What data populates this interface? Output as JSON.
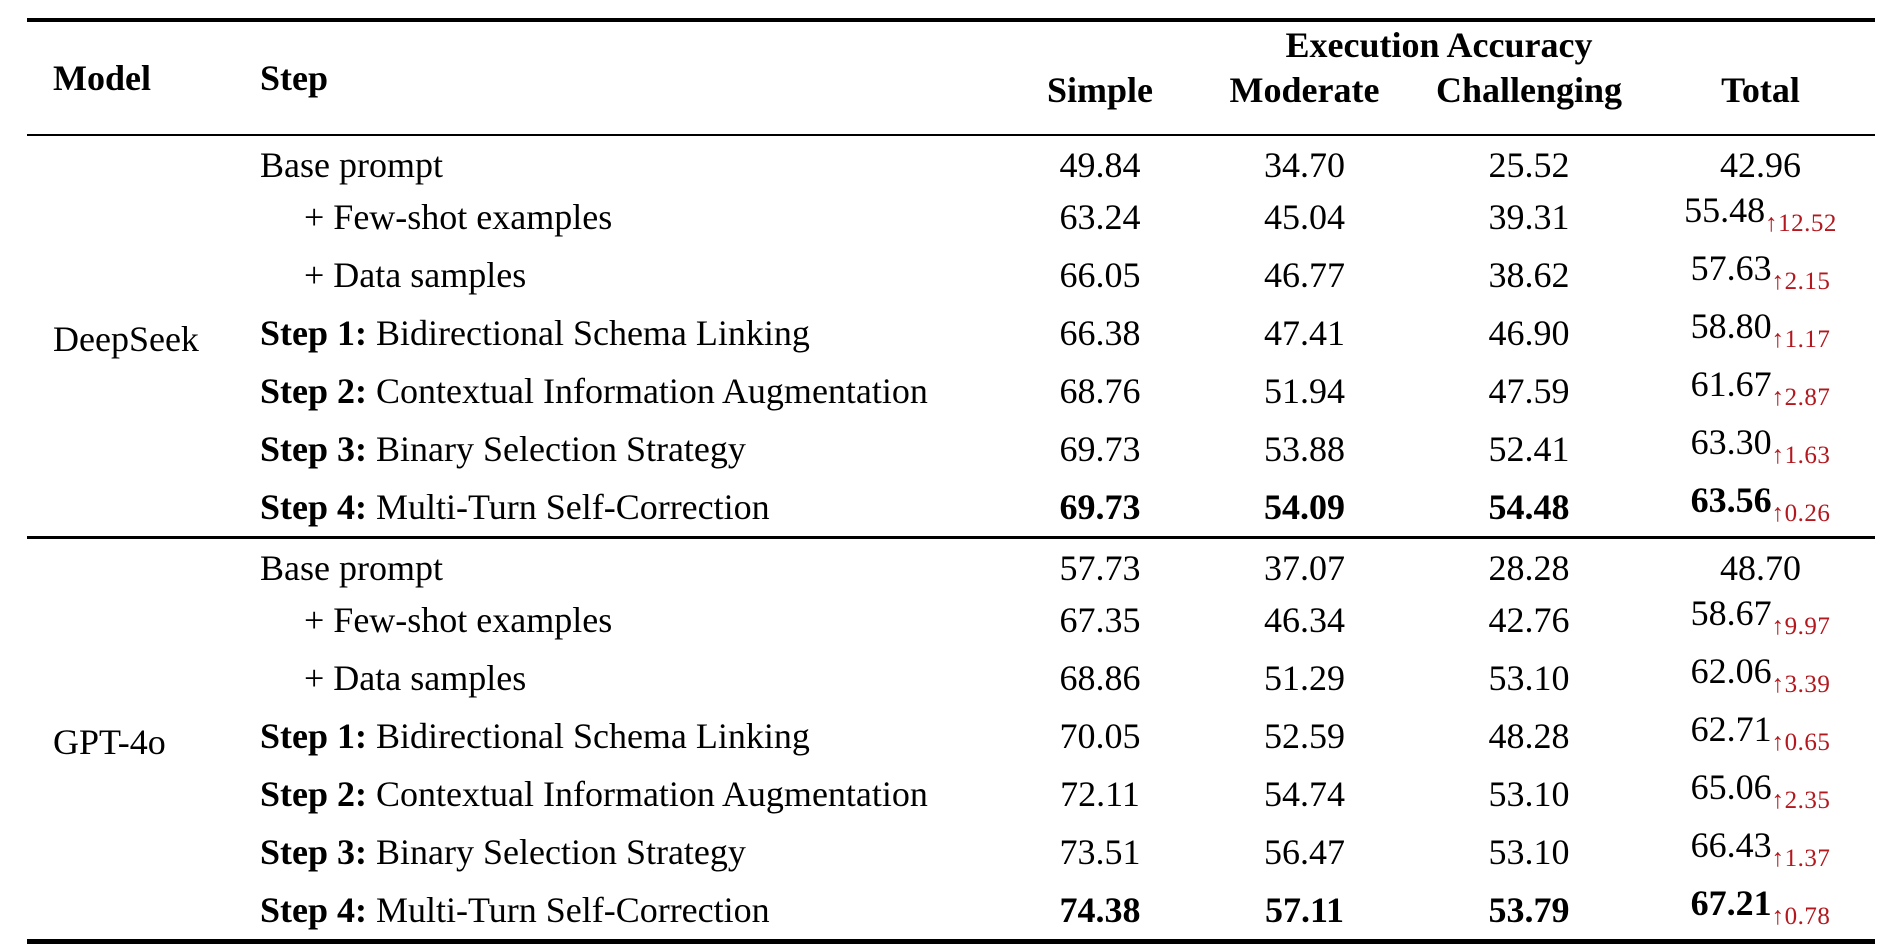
{
  "table": {
    "header": {
      "model_label": "Model",
      "step_label": "Step",
      "group_label": "Execution Accuracy",
      "sub_columns": [
        "Simple",
        "Moderate",
        "Challenging",
        "Total"
      ]
    },
    "colors": {
      "delta_red": "#b2181e",
      "text": "#000000",
      "rule": "#000000"
    },
    "sections": [
      {
        "model": "DeepSeek",
        "rows": [
          {
            "step_prefix": "",
            "step": "Base prompt",
            "indent": false,
            "bold": false,
            "simple": "49.84",
            "moderate": "34.70",
            "challenging": "25.52",
            "total": "42.96",
            "delta": ""
          },
          {
            "step_prefix": "",
            "step": "+ Few-shot examples",
            "indent": true,
            "bold": false,
            "simple": "63.24",
            "moderate": "45.04",
            "challenging": "39.31",
            "total": "55.48",
            "delta": "↑12.52"
          },
          {
            "step_prefix": "",
            "step": "+ Data samples",
            "indent": true,
            "bold": false,
            "simple": "66.05",
            "moderate": "46.77",
            "challenging": "38.62",
            "total": "57.63",
            "delta": "↑2.15"
          },
          {
            "step_prefix": "Step 1:",
            "step": " Bidirectional Schema Linking",
            "indent": false,
            "bold": false,
            "simple": "66.38",
            "moderate": "47.41",
            "challenging": "46.90",
            "total": "58.80",
            "delta": "↑1.17"
          },
          {
            "step_prefix": "Step 2:",
            "step": " Contextual Information Augmentation",
            "indent": false,
            "bold": false,
            "simple": "68.76",
            "moderate": "51.94",
            "challenging": "47.59",
            "total": "61.67",
            "delta": "↑2.87"
          },
          {
            "step_prefix": "Step 3:",
            "step": " Binary Selection Strategy",
            "indent": false,
            "bold": false,
            "simple": "69.73",
            "moderate": "53.88",
            "challenging": "52.41",
            "total": "63.30",
            "delta": "↑1.63"
          },
          {
            "step_prefix": "Step 4:",
            "step": " Multi-Turn Self-Correction",
            "indent": false,
            "bold": true,
            "simple": "69.73",
            "moderate": "54.09",
            "challenging": "54.48",
            "total": "63.56",
            "delta": "↑0.26"
          }
        ]
      },
      {
        "model": "GPT-4o",
        "rows": [
          {
            "step_prefix": "",
            "step": "Base prompt",
            "indent": false,
            "bold": false,
            "simple": "57.73",
            "moderate": "37.07",
            "challenging": "28.28",
            "total": "48.70",
            "delta": ""
          },
          {
            "step_prefix": "",
            "step": "+ Few-shot examples",
            "indent": true,
            "bold": false,
            "simple": "67.35",
            "moderate": "46.34",
            "challenging": "42.76",
            "total": "58.67",
            "delta": "↑9.97"
          },
          {
            "step_prefix": "",
            "step": "+ Data samples",
            "indent": true,
            "bold": false,
            "simple": "68.86",
            "moderate": "51.29",
            "challenging": "53.10",
            "total": "62.06",
            "delta": "↑3.39"
          },
          {
            "step_prefix": "Step 1:",
            "step": " Bidirectional Schema Linking",
            "indent": false,
            "bold": false,
            "simple": "70.05",
            "moderate": "52.59",
            "challenging": "48.28",
            "total": "62.71",
            "delta": "↑0.65"
          },
          {
            "step_prefix": "Step 2:",
            "step": " Contextual Information Augmentation",
            "indent": false,
            "bold": false,
            "simple": "72.11",
            "moderate": "54.74",
            "challenging": "53.10",
            "total": "65.06",
            "delta": "↑2.35"
          },
          {
            "step_prefix": "Step 3:",
            "step": " Binary Selection Strategy",
            "indent": false,
            "bold": false,
            "simple": "73.51",
            "moderate": "56.47",
            "challenging": "53.10",
            "total": "66.43",
            "delta": "↑1.37"
          },
          {
            "step_prefix": "Step 4:",
            "step": " Multi-Turn Self-Correction",
            "indent": false,
            "bold": true,
            "simple": "74.38",
            "moderate": "57.11",
            "challenging": "53.79",
            "total": "67.21",
            "delta": "↑0.78"
          }
        ]
      }
    ]
  }
}
